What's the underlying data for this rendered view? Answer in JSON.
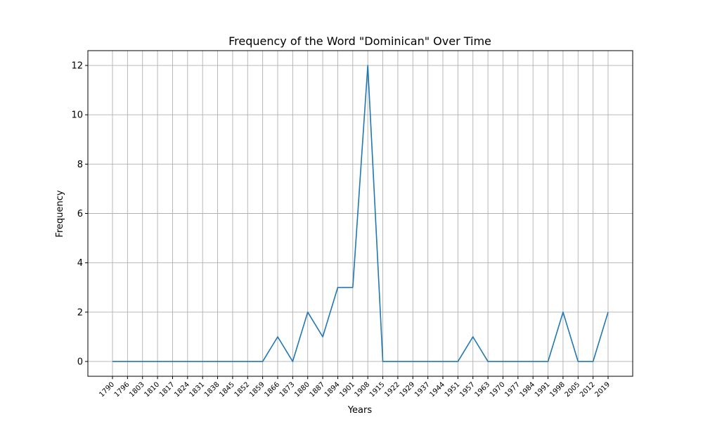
{
  "chart_data": {
    "type": "line",
    "title": "Frequency of the Word \"Dominican\" Over Time",
    "xlabel": "Years",
    "ylabel": "Frequency",
    "x": [
      "1790",
      "1796",
      "1803",
      "1810",
      "1817",
      "1824",
      "1831",
      "1838",
      "1845",
      "1852",
      "1859",
      "1866",
      "1873",
      "1880",
      "1887",
      "1894",
      "1901",
      "1908",
      "1915",
      "1922",
      "1929",
      "1937",
      "1944",
      "1951",
      "1957",
      "1963",
      "1970",
      "1977",
      "1984",
      "1991",
      "1998",
      "2005",
      "2012",
      "2019"
    ],
    "series": [
      {
        "name": "",
        "values": [
          0,
          0,
          0,
          0,
          0,
          0,
          0,
          0,
          0,
          0,
          0,
          1,
          0,
          2,
          1,
          3,
          3,
          12,
          0,
          0,
          0,
          0,
          0,
          0,
          1,
          0,
          0,
          0,
          0,
          0,
          2,
          0,
          0,
          2
        ]
      }
    ],
    "yticks": [
      0,
      2,
      4,
      6,
      8,
      10,
      12
    ],
    "ylim": [
      -0.6,
      12.6
    ],
    "grid": true,
    "colors": {
      "line": "#1f77b4",
      "grid": "#b0b0b0"
    }
  }
}
